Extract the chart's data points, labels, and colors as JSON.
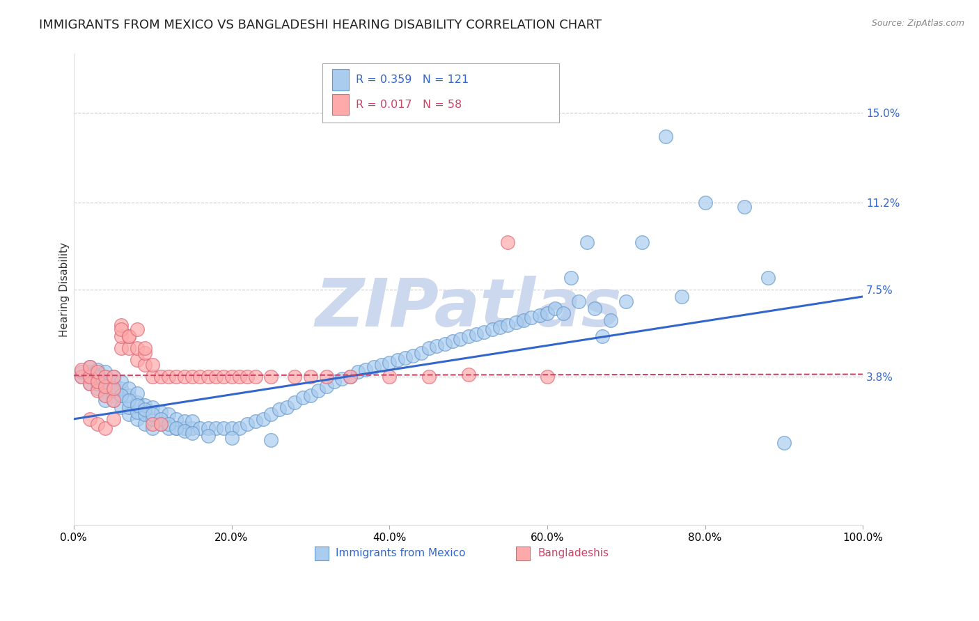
{
  "title": "IMMIGRANTS FROM MEXICO VS BANGLADESHI HEARING DISABILITY CORRELATION CHART",
  "source": "Source: ZipAtlas.com",
  "ylabel": "Hearing Disability",
  "ytick_labels": [
    "15.0%",
    "11.2%",
    "7.5%",
    "3.8%"
  ],
  "ytick_values": [
    0.15,
    0.112,
    0.075,
    0.038
  ],
  "xlim": [
    0.0,
    1.0
  ],
  "ylim": [
    -0.025,
    0.175
  ],
  "legend_label_blue": "Immigrants from Mexico",
  "legend_label_pink": "Bangladeshis",
  "blue_line_color": "#3366cc",
  "pink_line_color": "#cc4466",
  "blue_scatter_face": "#aaccee",
  "blue_scatter_edge": "#6699cc",
  "pink_scatter_face": "#ffaaaa",
  "pink_scatter_edge": "#dd6677",
  "watermark": "ZIPatlas",
  "background_color": "#ffffff",
  "grid_color": "#cccccc",
  "title_fontsize": 13,
  "axis_label_fontsize": 11,
  "tick_fontsize": 11,
  "watermark_color": "#ccd8ee",
  "watermark_fontsize": 70,
  "blue_line_x0": 0.0,
  "blue_line_y0": 0.02,
  "blue_line_x1": 1.0,
  "blue_line_y1": 0.072,
  "pink_line_x0": 0.0,
  "pink_line_y0": 0.0385,
  "pink_line_x1": 1.0,
  "pink_line_y1": 0.039,
  "blue_scatter_x": [
    0.01,
    0.01,
    0.02,
    0.02,
    0.02,
    0.02,
    0.02,
    0.03,
    0.03,
    0.03,
    0.03,
    0.03,
    0.03,
    0.03,
    0.04,
    0.04,
    0.04,
    0.04,
    0.04,
    0.04,
    0.05,
    0.05,
    0.05,
    0.05,
    0.05,
    0.06,
    0.06,
    0.06,
    0.06,
    0.07,
    0.07,
    0.07,
    0.07,
    0.08,
    0.08,
    0.08,
    0.08,
    0.09,
    0.09,
    0.09,
    0.1,
    0.1,
    0.1,
    0.11,
    0.11,
    0.12,
    0.12,
    0.13,
    0.13,
    0.14,
    0.14,
    0.15,
    0.15,
    0.16,
    0.17,
    0.18,
    0.19,
    0.2,
    0.21,
    0.22,
    0.23,
    0.24,
    0.25,
    0.26,
    0.27,
    0.28,
    0.29,
    0.3,
    0.31,
    0.32,
    0.33,
    0.34,
    0.35,
    0.36,
    0.37,
    0.38,
    0.39,
    0.4,
    0.41,
    0.42,
    0.43,
    0.44,
    0.45,
    0.46,
    0.47,
    0.48,
    0.49,
    0.5,
    0.51,
    0.52,
    0.53,
    0.54,
    0.55,
    0.56,
    0.57,
    0.58,
    0.59,
    0.6,
    0.61,
    0.62,
    0.63,
    0.64,
    0.65,
    0.66,
    0.67,
    0.68,
    0.7,
    0.72,
    0.75,
    0.77,
    0.8,
    0.85,
    0.88,
    0.9,
    0.03,
    0.04,
    0.05,
    0.06,
    0.07,
    0.08,
    0.09,
    0.1,
    0.11,
    0.12,
    0.13,
    0.14,
    0.15,
    0.17,
    0.2,
    0.25
  ],
  "blue_scatter_y": [
    0.038,
    0.04,
    0.035,
    0.038,
    0.04,
    0.042,
    0.039,
    0.033,
    0.036,
    0.038,
    0.041,
    0.039,
    0.037,
    0.035,
    0.03,
    0.033,
    0.036,
    0.038,
    0.04,
    0.028,
    0.03,
    0.033,
    0.036,
    0.038,
    0.028,
    0.025,
    0.03,
    0.033,
    0.036,
    0.022,
    0.025,
    0.03,
    0.033,
    0.02,
    0.023,
    0.027,
    0.031,
    0.018,
    0.022,
    0.026,
    0.016,
    0.02,
    0.025,
    0.018,
    0.023,
    0.016,
    0.022,
    0.016,
    0.02,
    0.016,
    0.019,
    0.016,
    0.019,
    0.016,
    0.016,
    0.016,
    0.016,
    0.016,
    0.016,
    0.018,
    0.019,
    0.02,
    0.022,
    0.024,
    0.025,
    0.027,
    0.029,
    0.03,
    0.032,
    0.034,
    0.036,
    0.037,
    0.038,
    0.04,
    0.041,
    0.042,
    0.043,
    0.044,
    0.045,
    0.046,
    0.047,
    0.048,
    0.05,
    0.051,
    0.052,
    0.053,
    0.054,
    0.055,
    0.056,
    0.057,
    0.058,
    0.059,
    0.06,
    0.061,
    0.062,
    0.063,
    0.064,
    0.065,
    0.067,
    0.065,
    0.08,
    0.07,
    0.095,
    0.067,
    0.055,
    0.062,
    0.07,
    0.095,
    0.14,
    0.072,
    0.112,
    0.11,
    0.08,
    0.01,
    0.038,
    0.034,
    0.032,
    0.03,
    0.028,
    0.026,
    0.024,
    0.022,
    0.02,
    0.018,
    0.016,
    0.015,
    0.014,
    0.013,
    0.012,
    0.011
  ],
  "pink_scatter_x": [
    0.01,
    0.01,
    0.02,
    0.02,
    0.02,
    0.03,
    0.03,
    0.03,
    0.04,
    0.04,
    0.04,
    0.05,
    0.05,
    0.05,
    0.06,
    0.06,
    0.06,
    0.07,
    0.07,
    0.08,
    0.08,
    0.09,
    0.09,
    0.1,
    0.1,
    0.11,
    0.12,
    0.13,
    0.14,
    0.15,
    0.16,
    0.17,
    0.18,
    0.19,
    0.2,
    0.21,
    0.22,
    0.23,
    0.25,
    0.28,
    0.3,
    0.32,
    0.35,
    0.4,
    0.45,
    0.5,
    0.55,
    0.6,
    0.02,
    0.03,
    0.04,
    0.05,
    0.06,
    0.07,
    0.08,
    0.09,
    0.1,
    0.11
  ],
  "pink_scatter_y": [
    0.038,
    0.041,
    0.035,
    0.038,
    0.042,
    0.032,
    0.036,
    0.04,
    0.03,
    0.034,
    0.038,
    0.028,
    0.033,
    0.038,
    0.05,
    0.055,
    0.06,
    0.05,
    0.055,
    0.045,
    0.05,
    0.043,
    0.048,
    0.038,
    0.043,
    0.038,
    0.038,
    0.038,
    0.038,
    0.038,
    0.038,
    0.038,
    0.038,
    0.038,
    0.038,
    0.038,
    0.038,
    0.038,
    0.038,
    0.038,
    0.038,
    0.038,
    0.038,
    0.038,
    0.038,
    0.039,
    0.095,
    0.038,
    0.02,
    0.018,
    0.016,
    0.02,
    0.058,
    0.055,
    0.058,
    0.05,
    0.018,
    0.018
  ]
}
